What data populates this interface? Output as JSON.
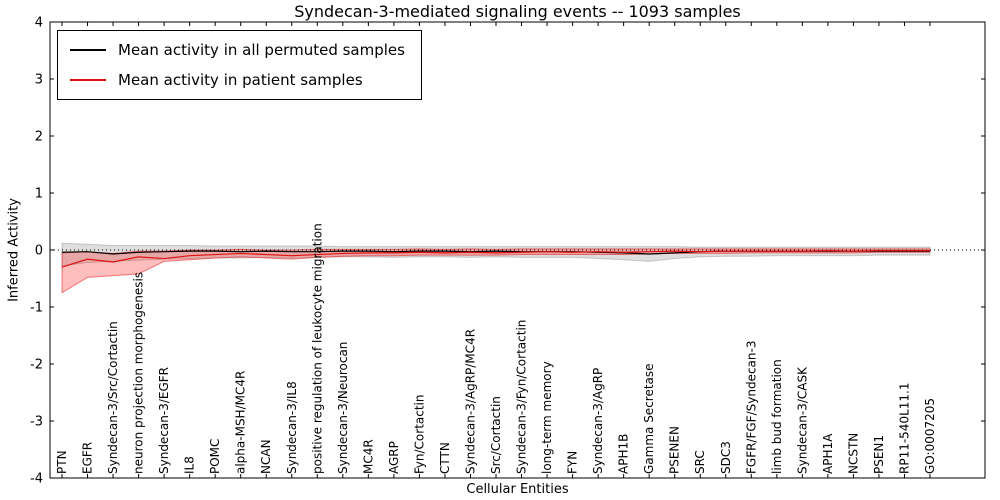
{
  "figure": {
    "title": "Syndecan-3-mediated signaling events -- 1093 samples",
    "xlabel": "Cellular Entities",
    "ylabel": "Inferred Activity"
  },
  "chart_data": {
    "type": "line",
    "title": "Syndecan-3-mediated signaling events -- 1093 samples",
    "xlabel": "Cellular Entities",
    "ylabel": "Inferred Activity",
    "ylim": [
      -4,
      4
    ],
    "yticks": [
      4,
      3,
      2,
      1,
      0,
      -1,
      -2,
      -3,
      -4
    ],
    "grid": false,
    "zero_line": true,
    "legend_position": "upper left",
    "categories": [
      "PTN",
      "EGFR",
      "Syndecan-3/Src/Cortactin",
      "neuron projection morphogenesis",
      "Syndecan-3/EGFR",
      "IL8",
      "POMC",
      "alpha-MSH/MC4R",
      "NCAN",
      "Syndecan-3/IL8",
      "positive regulation of leukocyte migration",
      "Syndecan-3/Neurocan",
      "MC4R",
      "AGRP",
      "Fyn/Cortactin",
      "CTTN",
      "Syndecan-3/AgRP/MC4R",
      "Src/Cortactin",
      "Syndecan-3/Fyn/Cortactin",
      "long-term memory",
      "FYN",
      "Syndecan-3/AgRP",
      "APH1B",
      "Gamma Secretase",
      "PSENEN",
      "SRC",
      "SDC3",
      "FGFR/FGF/Syndecan-3",
      "limb bud formation",
      "Syndecan-3/CASK",
      "APH1A",
      "NCSTN",
      "PSEN1",
      "RP11-540L11.1",
      "GO:0007205"
    ],
    "series": [
      {
        "name": "Mean activity in all permuted samples",
        "color": "#000000",
        "band_color": "rgba(0,0,0,0.13)",
        "band_edge": "rgba(0,0,0,0.18)",
        "values": [
          -0.04,
          -0.03,
          -0.07,
          -0.04,
          -0.03,
          -0.02,
          -0.02,
          -0.03,
          -0.02,
          -0.03,
          -0.03,
          -0.02,
          -0.02,
          -0.03,
          -0.02,
          -0.02,
          -0.03,
          -0.02,
          -0.03,
          -0.03,
          -0.03,
          -0.04,
          -0.05,
          -0.07,
          -0.05,
          -0.03,
          -0.02,
          -0.02,
          -0.02,
          -0.02,
          -0.02,
          -0.02,
          -0.02,
          -0.02,
          -0.02
        ],
        "band_upper": [
          0.12,
          0.1,
          0.08,
          0.08,
          0.08,
          0.08,
          0.07,
          0.07,
          0.07,
          0.07,
          0.07,
          0.06,
          0.06,
          0.06,
          0.06,
          0.06,
          0.06,
          0.06,
          0.06,
          0.06,
          0.06,
          0.06,
          0.06,
          0.06,
          0.06,
          0.05,
          0.05,
          0.05,
          0.05,
          0.05,
          0.05,
          0.05,
          0.05,
          0.05,
          0.05
        ],
        "band_lower": [
          -0.28,
          -0.22,
          -0.2,
          -0.18,
          -0.16,
          -0.15,
          -0.14,
          -0.14,
          -0.13,
          -0.14,
          -0.13,
          -0.12,
          -0.12,
          -0.13,
          -0.12,
          -0.12,
          -0.13,
          -0.12,
          -0.13,
          -0.13,
          -0.13,
          -0.15,
          -0.17,
          -0.2,
          -0.15,
          -0.12,
          -0.11,
          -0.11,
          -0.1,
          -0.1,
          -0.1,
          -0.1,
          -0.09,
          -0.09,
          -0.09
        ]
      },
      {
        "name": "Mean activity in patient samples",
        "color": "#e01010",
        "band_color": "rgba(255,40,40,0.30)",
        "band_edge": "rgba(225,25,25,0.55)",
        "values": [
          -0.3,
          -0.16,
          -0.21,
          -0.12,
          -0.15,
          -0.1,
          -0.08,
          -0.06,
          -0.08,
          -0.1,
          -0.08,
          -0.06,
          -0.05,
          -0.05,
          -0.04,
          -0.05,
          -0.04,
          -0.05,
          -0.04,
          -0.03,
          -0.04,
          -0.03,
          -0.04,
          -0.03,
          -0.02,
          -0.03,
          -0.02,
          -0.02,
          -0.02,
          -0.02,
          -0.01,
          -0.02,
          -0.01,
          -0.01,
          -0.01
        ],
        "band_upper": [
          -0.05,
          -0.03,
          -0.06,
          -0.02,
          -0.02,
          0.0,
          0.0,
          0.01,
          0.0,
          0.0,
          0.01,
          0.01,
          0.01,
          0.01,
          0.02,
          0.01,
          0.02,
          0.01,
          0.02,
          0.02,
          0.02,
          0.02,
          0.02,
          0.02,
          0.02,
          0.02,
          0.02,
          0.02,
          0.02,
          0.02,
          0.02,
          0.02,
          0.02,
          0.02,
          0.02
        ],
        "band_lower": [
          -0.75,
          -0.48,
          -0.45,
          -0.42,
          -0.2,
          -0.17,
          -0.14,
          -0.12,
          -0.14,
          -0.16,
          -0.13,
          -0.11,
          -0.1,
          -0.1,
          -0.09,
          -0.09,
          -0.09,
          -0.09,
          -0.08,
          -0.08,
          -0.08,
          -0.08,
          -0.08,
          -0.07,
          -0.06,
          -0.06,
          -0.06,
          -0.05,
          -0.05,
          -0.05,
          -0.05,
          -0.05,
          -0.04,
          -0.04,
          -0.04
        ]
      }
    ]
  }
}
